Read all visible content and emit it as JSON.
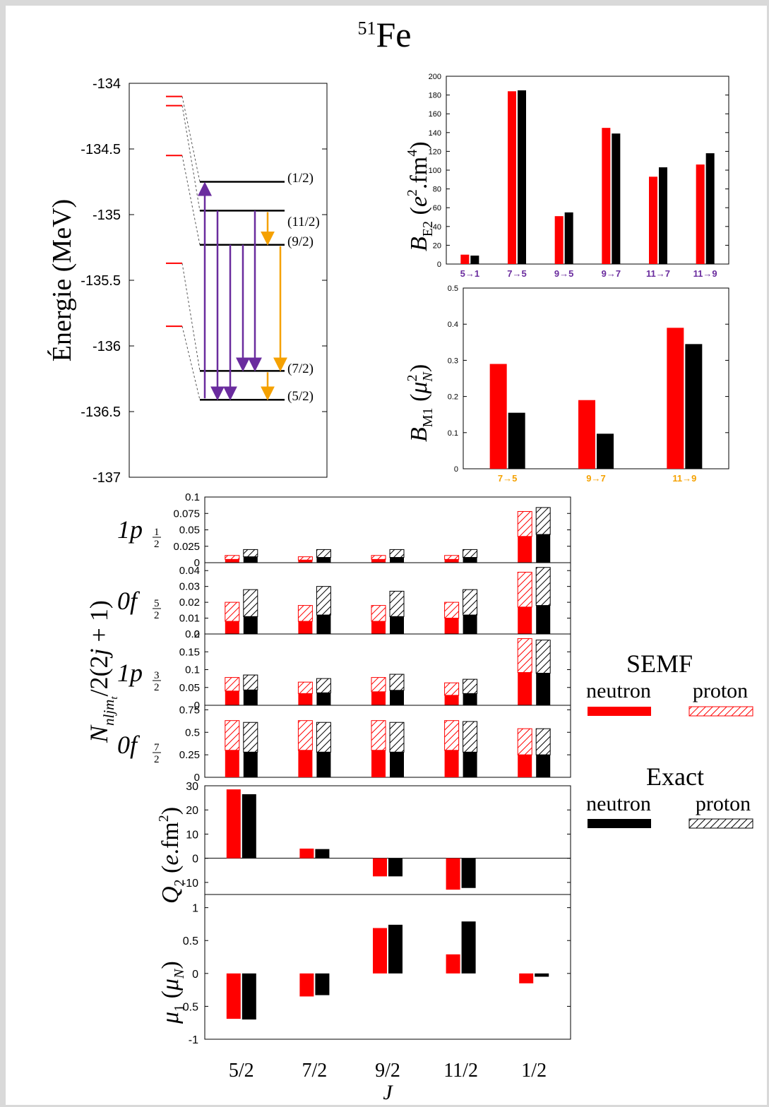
{
  "title": {
    "superscript": "51",
    "element": "Fe"
  },
  "colors": {
    "semf": "#ff0000",
    "exact": "#000000",
    "purple": "#6a2c9e",
    "orange": "#f5a100",
    "dashed": "#555555"
  },
  "level_scheme": {
    "ylabel": "Énergie (MeV)",
    "ylim": [
      -137,
      -134
    ],
    "yticks": [
      "-134",
      "-134.5",
      "-135",
      "-135.5",
      "-136",
      "-136.5",
      "-137"
    ],
    "semf_levels": [
      -134.1,
      -134.17,
      -134.55,
      -135.37,
      -135.85
    ],
    "exact_levels": [
      {
        "energy": -134.75,
        "label": "(1/2)"
      },
      {
        "energy": -134.97,
        "label": "(11/2)"
      },
      {
        "energy": -135.23,
        "label": "(9/2)"
      },
      {
        "energy": -136.19,
        "label": "(7/2)"
      },
      {
        "energy": -136.41,
        "label": "(5/2)"
      }
    ]
  },
  "chart_data": [
    {
      "type": "bar",
      "name": "BE2",
      "ylabel_tex": "B_E2 (e².fm⁴)",
      "ylim": [
        0,
        200
      ],
      "yticks": [
        "0",
        "20",
        "40",
        "60",
        "80",
        "100",
        "120",
        "140",
        "160",
        "180",
        "200"
      ],
      "categories": [
        "5→1",
        "7→5",
        "9→5",
        "9→7",
        "11→7",
        "11→9"
      ],
      "series": [
        {
          "values": [
            10,
            184,
            51,
            145,
            93,
            106
          ]
        },
        {
          "values": [
            9,
            185,
            55,
            139,
            103,
            118
          ]
        }
      ]
    },
    {
      "type": "bar",
      "name": "BM1",
      "ylim": [
        0,
        0.5
      ],
      "yticks": [
        "0",
        "0.1",
        "0.2",
        "0.3",
        "0.4",
        "0.5"
      ],
      "categories": [
        "7→5",
        "9→7",
        "11→9"
      ],
      "series": [
        {
          "values": [
            0.29,
            0.19,
            0.39
          ]
        },
        {
          "values": [
            0.155,
            0.097,
            0.345
          ]
        }
      ]
    },
    {
      "type": "bar",
      "name": "occupancies",
      "ylabel": "N_nljm_t / 2(2j+1)",
      "xlabel": "J",
      "categories": [
        "5/2",
        "7/2",
        "9/2",
        "11/2",
        "1/2"
      ],
      "panels": [
        {
          "orbital": "1p1/2",
          "ylim": [
            0,
            0.1
          ],
          "yticks": [
            "0",
            "0.025",
            "0.05",
            "0.075",
            "0.1"
          ],
          "semf_neutron": [
            0.005,
            0.004,
            0.005,
            0.005,
            0.04
          ],
          "semf_total": [
            0.011,
            0.009,
            0.011,
            0.011,
            0.078
          ],
          "exact_neutron": [
            0.009,
            0.008,
            0.008,
            0.008,
            0.043
          ],
          "exact_total": [
            0.02,
            0.02,
            0.02,
            0.02,
            0.084
          ]
        },
        {
          "orbital": "0f5/2",
          "ylim": [
            0,
            0.045
          ],
          "yticks": [
            "0",
            "0.01",
            "0.02",
            "0.03",
            "0.04"
          ],
          "semf_neutron": [
            0.008,
            0.008,
            0.008,
            0.01,
            0.017
          ],
          "semf_total": [
            0.02,
            0.018,
            0.018,
            0.02,
            0.039
          ],
          "exact_neutron": [
            0.011,
            0.012,
            0.011,
            0.012,
            0.018
          ],
          "exact_total": [
            0.028,
            0.03,
            0.027,
            0.028,
            0.042
          ]
        },
        {
          "orbital": "1p3/2",
          "ylim": [
            0,
            0.2
          ],
          "yticks": [
            "0",
            "0.05",
            "0.1",
            "0.15",
            "0.2"
          ],
          "semf_neutron": [
            0.04,
            0.033,
            0.038,
            0.028,
            0.092
          ],
          "semf_total": [
            0.078,
            0.065,
            0.078,
            0.063,
            0.187
          ],
          "exact_neutron": [
            0.043,
            0.035,
            0.042,
            0.033,
            0.09
          ],
          "exact_total": [
            0.085,
            0.075,
            0.087,
            0.073,
            0.183
          ]
        },
        {
          "orbital": "0f7/2",
          "ylim": [
            0,
            0.8
          ],
          "yticks": [
            "0",
            "0.25",
            "0.5",
            "0.75"
          ],
          "semf_neutron": [
            0.3,
            0.3,
            0.3,
            0.3,
            0.25
          ],
          "semf_total": [
            0.63,
            0.63,
            0.63,
            0.63,
            0.54
          ],
          "exact_neutron": [
            0.28,
            0.28,
            0.28,
            0.28,
            0.25
          ],
          "exact_total": [
            0.61,
            0.61,
            0.61,
            0.62,
            0.54
          ]
        }
      ]
    },
    {
      "type": "bar",
      "name": "Q2",
      "ylabel": "Q₂ (e.fm²)",
      "ylim": [
        -15,
        30
      ],
      "yticks": [
        "-10",
        "0",
        "10",
        "20",
        "30"
      ],
      "categories": [
        "5/2",
        "7/2",
        "9/2",
        "11/2",
        "1/2"
      ],
      "series": [
        {
          "values": [
            28.5,
            4,
            -7.5,
            -13,
            0
          ]
        },
        {
          "values": [
            26.5,
            3.8,
            -7.5,
            -12.3,
            0
          ]
        }
      ]
    },
    {
      "type": "bar",
      "name": "mu1",
      "ylabel": "μ₁ (μ_N)",
      "ylim": [
        -1,
        1.2
      ],
      "yticks": [
        "-1",
        "-0.5",
        "0",
        "0.5",
        "1"
      ],
      "categories": [
        "5/2",
        "7/2",
        "9/2",
        "11/2",
        "1/2"
      ],
      "series": [
        {
          "values": [
            -0.69,
            -0.35,
            0.69,
            0.29,
            -0.15
          ]
        },
        {
          "values": [
            -0.7,
            -0.33,
            0.74,
            0.79,
            -0.05
          ]
        }
      ]
    }
  ],
  "legend": {
    "semf_title": "SEMF",
    "exact_title": "Exact",
    "neutron": "neutron",
    "proton": "proton"
  }
}
